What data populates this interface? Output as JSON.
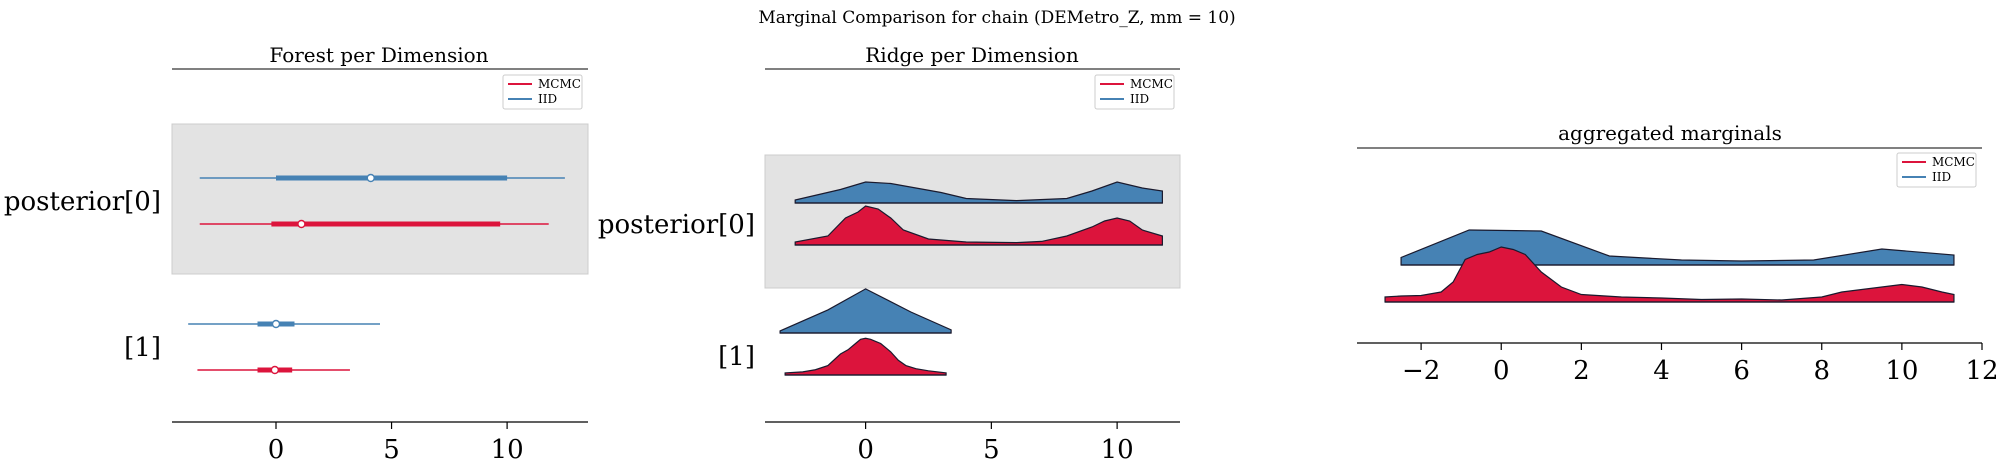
{
  "chart_data": [
    {
      "type": "forest",
      "suptitle": "Marginal Comparison for chain (DEMetro_Z, mm = 10)",
      "title": "Forest per Dimension",
      "xlim": [
        -4.5,
        13.5
      ],
      "xticks": [
        "0",
        "5",
        "10"
      ],
      "row_labels": [
        "posterior[0]",
        "[1]"
      ],
      "legend": [
        "MCMC",
        "IID"
      ],
      "legend_position": "top-right",
      "shaded_row": "posterior[0]",
      "series": [
        {
          "name": "IID",
          "color": "#4682b4",
          "row": 0,
          "hdi": [
            -3.3,
            12.5
          ],
          "iqr": [
            0.0,
            10.0
          ],
          "point": 4.1
        },
        {
          "name": "MCMC",
          "color": "#dc143c",
          "row": 0,
          "hdi": [
            -3.3,
            11.8
          ],
          "iqr": [
            -0.2,
            9.7
          ],
          "point": 1.1
        },
        {
          "name": "IID",
          "color": "#4682b4",
          "row": 1,
          "hdi": [
            -3.8,
            4.5
          ],
          "iqr": [
            -0.8,
            0.8
          ],
          "point": 0.0
        },
        {
          "name": "MCMC",
          "color": "#dc143c",
          "row": 1,
          "hdi": [
            -3.4,
            3.2
          ],
          "iqr": [
            -0.8,
            0.7
          ],
          "point": -0.05
        }
      ]
    },
    {
      "type": "ridgeline",
      "title": "Ridge per Dimension",
      "xlim": [
        -4,
        12.5
      ],
      "xticks": [
        "0",
        "5",
        "10"
      ],
      "row_labels": [
        "posterior[0]",
        "[1]"
      ],
      "legend": [
        "MCMC",
        "IID"
      ],
      "legend_position": "top-right",
      "shaded_row": "posterior[0]",
      "series": [
        {
          "name": "IID",
          "color": "#4682b4",
          "row": 0,
          "x": [
            -2.8,
            -1,
            0,
            1,
            2,
            3,
            4,
            6,
            8,
            9,
            10,
            11,
            11.8
          ],
          "y": [
            0.01,
            0.045,
            0.07,
            0.065,
            0.05,
            0.035,
            0.015,
            0.008,
            0.015,
            0.04,
            0.07,
            0.05,
            0.04
          ]
        },
        {
          "name": "MCMC",
          "color": "#dc143c",
          "row": 0,
          "x": [
            -2.8,
            -1.5,
            -0.8,
            -0.3,
            0,
            0.5,
            1,
            1.5,
            2.5,
            4,
            6,
            7,
            8,
            9,
            9.5,
            10,
            10.5,
            11,
            11.8
          ],
          "y": [
            0.01,
            0.03,
            0.09,
            0.11,
            0.13,
            0.12,
            0.09,
            0.05,
            0.02,
            0.01,
            0.008,
            0.012,
            0.03,
            0.06,
            0.08,
            0.09,
            0.08,
            0.05,
            0.03
          ]
        },
        {
          "name": "IID",
          "color": "#4682b4",
          "row": 1,
          "x": [
            -3.4,
            -1.5,
            0,
            1.8,
            3.4
          ],
          "y": [
            0.02,
            0.22,
            0.42,
            0.2,
            0.03
          ]
        },
        {
          "name": "MCMC",
          "color": "#dc143c",
          "row": 1,
          "x": [
            -3.2,
            -2.5,
            -2,
            -1.5,
            -1,
            -0.7,
            -0.4,
            -0.2,
            0,
            0.2,
            0.4,
            0.6,
            0.8,
            1,
            1.3,
            1.6,
            2,
            2.5,
            3.2
          ],
          "y": [
            0.02,
            0.03,
            0.05,
            0.09,
            0.2,
            0.24,
            0.3,
            0.34,
            0.35,
            0.34,
            0.32,
            0.3,
            0.26,
            0.22,
            0.14,
            0.09,
            0.06,
            0.04,
            0.02
          ]
        }
      ]
    },
    {
      "type": "ridgeline",
      "title": "aggregated marginals",
      "xlim": [
        -3.6,
        12
      ],
      "xticks": [
        "−2",
        "0",
        "2",
        "4",
        "6",
        "8",
        "10",
        "12"
      ],
      "xtick_values": [
        -2,
        0,
        2,
        4,
        6,
        8,
        10,
        12
      ],
      "legend": [
        "MCMC",
        "IID"
      ],
      "legend_position": "top-right",
      "series": [
        {
          "name": "IID",
          "color": "#4682b4",
          "x": [
            -2.5,
            -0.8,
            1,
            2.7,
            4.5,
            6,
            7.8,
            9.5,
            11.3
          ],
          "y": [
            0.015,
            0.07,
            0.068,
            0.018,
            0.01,
            0.008,
            0.01,
            0.032,
            0.02
          ]
        },
        {
          "name": "MCMC",
          "color": "#dc143c",
          "x": [
            -2.9,
            -2.5,
            -2,
            -1.5,
            -1.2,
            -0.9,
            -0.6,
            -0.3,
            0,
            0.3,
            0.6,
            1,
            1.5,
            2,
            3,
            4,
            5,
            6,
            7,
            8,
            8.5,
            9,
            9.5,
            10,
            10.5,
            11,
            11.3
          ],
          "y": [
            0.01,
            0.012,
            0.013,
            0.02,
            0.04,
            0.085,
            0.095,
            0.1,
            0.11,
            0.105,
            0.095,
            0.06,
            0.03,
            0.015,
            0.01,
            0.008,
            0.005,
            0.006,
            0.004,
            0.01,
            0.02,
            0.025,
            0.03,
            0.035,
            0.03,
            0.02,
            0.015
          ]
        }
      ]
    }
  ]
}
